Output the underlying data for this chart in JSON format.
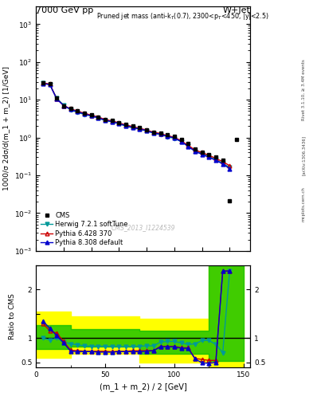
{
  "title_left": "7000 GeV pp",
  "title_right": "W+Jet",
  "annotation": "Pruned jet mass (anti-k$_{T}$(0.7), 2300<p$_{T}$<450, |y|<2.5)",
  "cms_label": "CMS_2013_I1224539",
  "rivet_label": "Rivet 3.1.10, ≥ 3.4M events",
  "arxiv_label": "[arXiv:1306.3436]",
  "mcplots_label": "mcplots.cern.ch",
  "ylabel_main": "1000/σ 2dσ/d(m_1 + m_2) [1/GeV]",
  "ylabel_ratio": "Ratio to CMS",
  "xlabel": "(m_1 + m_2) / 2 [GeV]",
  "xlim": [
    0,
    155
  ],
  "ylim_main": [
    0.001,
    3000.0
  ],
  "ylim_ratio": [
    0.4,
    2.5
  ],
  "x_cms": [
    5,
    10,
    15,
    20,
    25,
    30,
    35,
    40,
    45,
    50,
    55,
    60,
    65,
    70,
    75,
    80,
    85,
    90,
    95,
    100,
    105,
    110,
    115,
    120,
    125,
    130,
    135,
    140,
    145
  ],
  "y_cms": [
    28,
    26,
    11,
    7,
    6,
    5,
    4.5,
    4,
    3.5,
    3,
    2.8,
    2.5,
    2.2,
    2,
    1.8,
    1.6,
    1.4,
    1.3,
    1.2,
    1.1,
    0.9,
    0.7,
    0.5,
    0.4,
    0.35,
    0.3,
    0.25,
    0.021,
    0.9
  ],
  "x_herwig": [
    5,
    10,
    15,
    20,
    25,
    30,
    35,
    40,
    45,
    50,
    55,
    60,
    65,
    70,
    75,
    80,
    85,
    90,
    95,
    100,
    105,
    110,
    115,
    120,
    125,
    130,
    135,
    140
  ],
  "y_herwig": [
    28,
    25,
    11,
    7.2,
    5.4,
    4.6,
    4.1,
    3.7,
    3.3,
    2.8,
    2.6,
    2.3,
    2.0,
    1.8,
    1.65,
    1.5,
    1.3,
    1.2,
    1.05,
    0.95,
    0.78,
    0.6,
    0.44,
    0.38,
    0.32,
    0.26,
    0.21,
    0.16
  ],
  "x_pythia6": [
    5,
    10,
    15,
    20,
    25,
    30,
    35,
    40,
    45,
    50,
    55,
    60,
    65,
    70,
    75,
    80,
    85,
    90,
    95,
    100,
    105,
    110,
    115,
    120,
    125,
    130,
    135,
    140
  ],
  "y_pythia6": [
    28,
    26,
    10.5,
    7.0,
    5.8,
    5.0,
    4.4,
    3.9,
    3.5,
    3.0,
    2.75,
    2.45,
    2.15,
    1.95,
    1.75,
    1.58,
    1.38,
    1.28,
    1.12,
    1.02,
    0.82,
    0.62,
    0.47,
    0.4,
    0.34,
    0.28,
    0.23,
    0.18
  ],
  "x_pythia8": [
    5,
    10,
    15,
    20,
    25,
    30,
    35,
    40,
    45,
    50,
    55,
    60,
    65,
    70,
    75,
    80,
    85,
    90,
    95,
    100,
    105,
    110,
    115,
    120,
    125,
    130,
    135,
    140
  ],
  "y_pythia8": [
    27,
    25,
    10.5,
    7.0,
    5.6,
    4.8,
    4.2,
    3.75,
    3.35,
    2.85,
    2.65,
    2.35,
    2.05,
    1.85,
    1.68,
    1.52,
    1.32,
    1.22,
    1.08,
    0.98,
    0.78,
    0.58,
    0.43,
    0.36,
    0.3,
    0.25,
    0.2,
    0.15
  ],
  "ratio_x": [
    5,
    10,
    15,
    20,
    25,
    30,
    35,
    40,
    45,
    50,
    55,
    60,
    65,
    70,
    75,
    80,
    85,
    90,
    95,
    100,
    105,
    110,
    115,
    120,
    125,
    130,
    135,
    140
  ],
  "ratio_herwig": [
    1.0,
    0.96,
    1.0,
    0.92,
    0.88,
    0.86,
    0.84,
    0.83,
    0.83,
    0.83,
    0.82,
    0.82,
    0.82,
    0.82,
    0.83,
    0.84,
    0.84,
    0.92,
    0.93,
    0.93,
    0.9,
    0.87,
    0.88,
    0.95,
    0.95,
    0.87,
    0.7,
    2.38
  ],
  "ratio_pythia6": [
    1.3,
    1.15,
    1.1,
    0.93,
    0.75,
    0.74,
    0.73,
    0.73,
    0.73,
    0.73,
    0.72,
    0.73,
    0.73,
    0.74,
    0.74,
    0.74,
    0.74,
    0.83,
    0.83,
    0.83,
    0.8,
    0.8,
    0.58,
    0.56,
    0.54,
    0.54,
    2.38,
    2.38
  ],
  "ratio_pythia8": [
    1.35,
    1.2,
    1.05,
    0.9,
    0.73,
    0.72,
    0.72,
    0.72,
    0.71,
    0.71,
    0.71,
    0.72,
    0.72,
    0.72,
    0.72,
    0.73,
    0.74,
    0.82,
    0.82,
    0.82,
    0.79,
    0.79,
    0.57,
    0.49,
    0.48,
    0.5,
    2.38,
    2.38
  ],
  "band_x": [
    0,
    25,
    25,
    75,
    75,
    125,
    125,
    150,
    150
  ],
  "band_y_ylo": [
    0.6,
    0.6,
    0.68,
    0.68,
    0.5,
    0.5,
    0.42,
    0.42,
    0.42
  ],
  "band_y_yhi": [
    1.55,
    1.55,
    1.45,
    1.45,
    1.4,
    1.4,
    2.5,
    2.5,
    2.5
  ],
  "band_y_glo": [
    0.77,
    0.77,
    0.82,
    0.82,
    0.68,
    0.68,
    0.52,
    0.52,
    0.52
  ],
  "band_y_ghi": [
    1.27,
    1.27,
    1.18,
    1.18,
    1.15,
    1.15,
    2.5,
    2.5,
    2.5
  ],
  "color_cms": "#000000",
  "color_herwig": "#009999",
  "color_pythia6": "#cc0000",
  "color_pythia8": "#0000cc",
  "color_yellow": "#ffff00",
  "color_green": "#00bb00",
  "bg_color": "#ffffff"
}
